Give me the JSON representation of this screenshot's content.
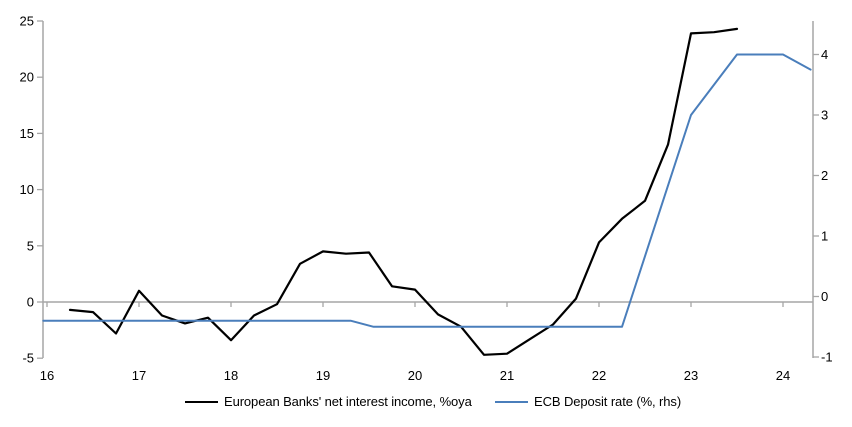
{
  "chart_data": {
    "type": "line",
    "title": "",
    "xlabel": "",
    "ylabel_left": "",
    "ylabel_right": "",
    "x_ticks": [
      16,
      17,
      18,
      19,
      20,
      21,
      22,
      23,
      24
    ],
    "left_axis": {
      "ticks": [
        25,
        20,
        15,
        10,
        5,
        0,
        -5
      ],
      "range": [
        -5,
        25
      ]
    },
    "right_axis": {
      "ticks": [
        4,
        3,
        2,
        1,
        0,
        -1
      ],
      "range": [
        -1,
        4.5
      ]
    },
    "x_range": [
      15.95,
      24.4
    ],
    "grid": "zero-line-only",
    "legend_position": "bottom",
    "series": [
      {
        "name": "European Banks' net interest income, %oya",
        "axis": "left",
        "color": "#000000",
        "width": 2.2,
        "points": [
          [
            16.25,
            -0.7
          ],
          [
            16.5,
            -0.9
          ],
          [
            16.75,
            -2.8
          ],
          [
            17.0,
            1.0
          ],
          [
            17.25,
            -1.2
          ],
          [
            17.5,
            -1.9
          ],
          [
            17.75,
            -1.4
          ],
          [
            18.0,
            -3.4
          ],
          [
            18.25,
            -1.2
          ],
          [
            18.5,
            -0.2
          ],
          [
            18.75,
            3.4
          ],
          [
            19.0,
            4.5
          ],
          [
            19.25,
            4.3
          ],
          [
            19.5,
            4.4
          ],
          [
            19.75,
            1.4
          ],
          [
            20.0,
            1.1
          ],
          [
            20.25,
            -1.1
          ],
          [
            20.5,
            -2.2
          ],
          [
            20.75,
            -4.7
          ],
          [
            21.0,
            -4.6
          ],
          [
            21.25,
            -3.3
          ],
          [
            21.5,
            -2.0
          ],
          [
            21.75,
            0.3
          ],
          [
            22.0,
            5.3
          ],
          [
            22.25,
            7.4
          ],
          [
            22.5,
            9.0
          ],
          [
            22.75,
            14.0
          ],
          [
            23.0,
            23.9
          ],
          [
            23.25,
            24.0
          ],
          [
            23.5,
            24.3
          ]
        ]
      },
      {
        "name": "ECB Deposit rate (%, rhs)",
        "axis": "right",
        "color": "#4a7ebb",
        "width": 2,
        "points": [
          [
            15.96,
            -0.4
          ],
          [
            19.3,
            -0.4
          ],
          [
            19.55,
            -0.5
          ],
          [
            22.25,
            -0.5
          ],
          [
            23.0,
            3.0
          ],
          [
            23.5,
            4.0
          ],
          [
            24.0,
            4.0
          ],
          [
            24.3,
            3.75
          ]
        ]
      }
    ]
  },
  "colors": {
    "axis": "#a6a6a6",
    "zero_line": "#a6a6a6",
    "background": "#ffffff",
    "text": "#000000"
  },
  "legend": {
    "label_1": "European Banks' net interest income, %oya",
    "label_2": "ECB Deposit rate (%, rhs)"
  }
}
